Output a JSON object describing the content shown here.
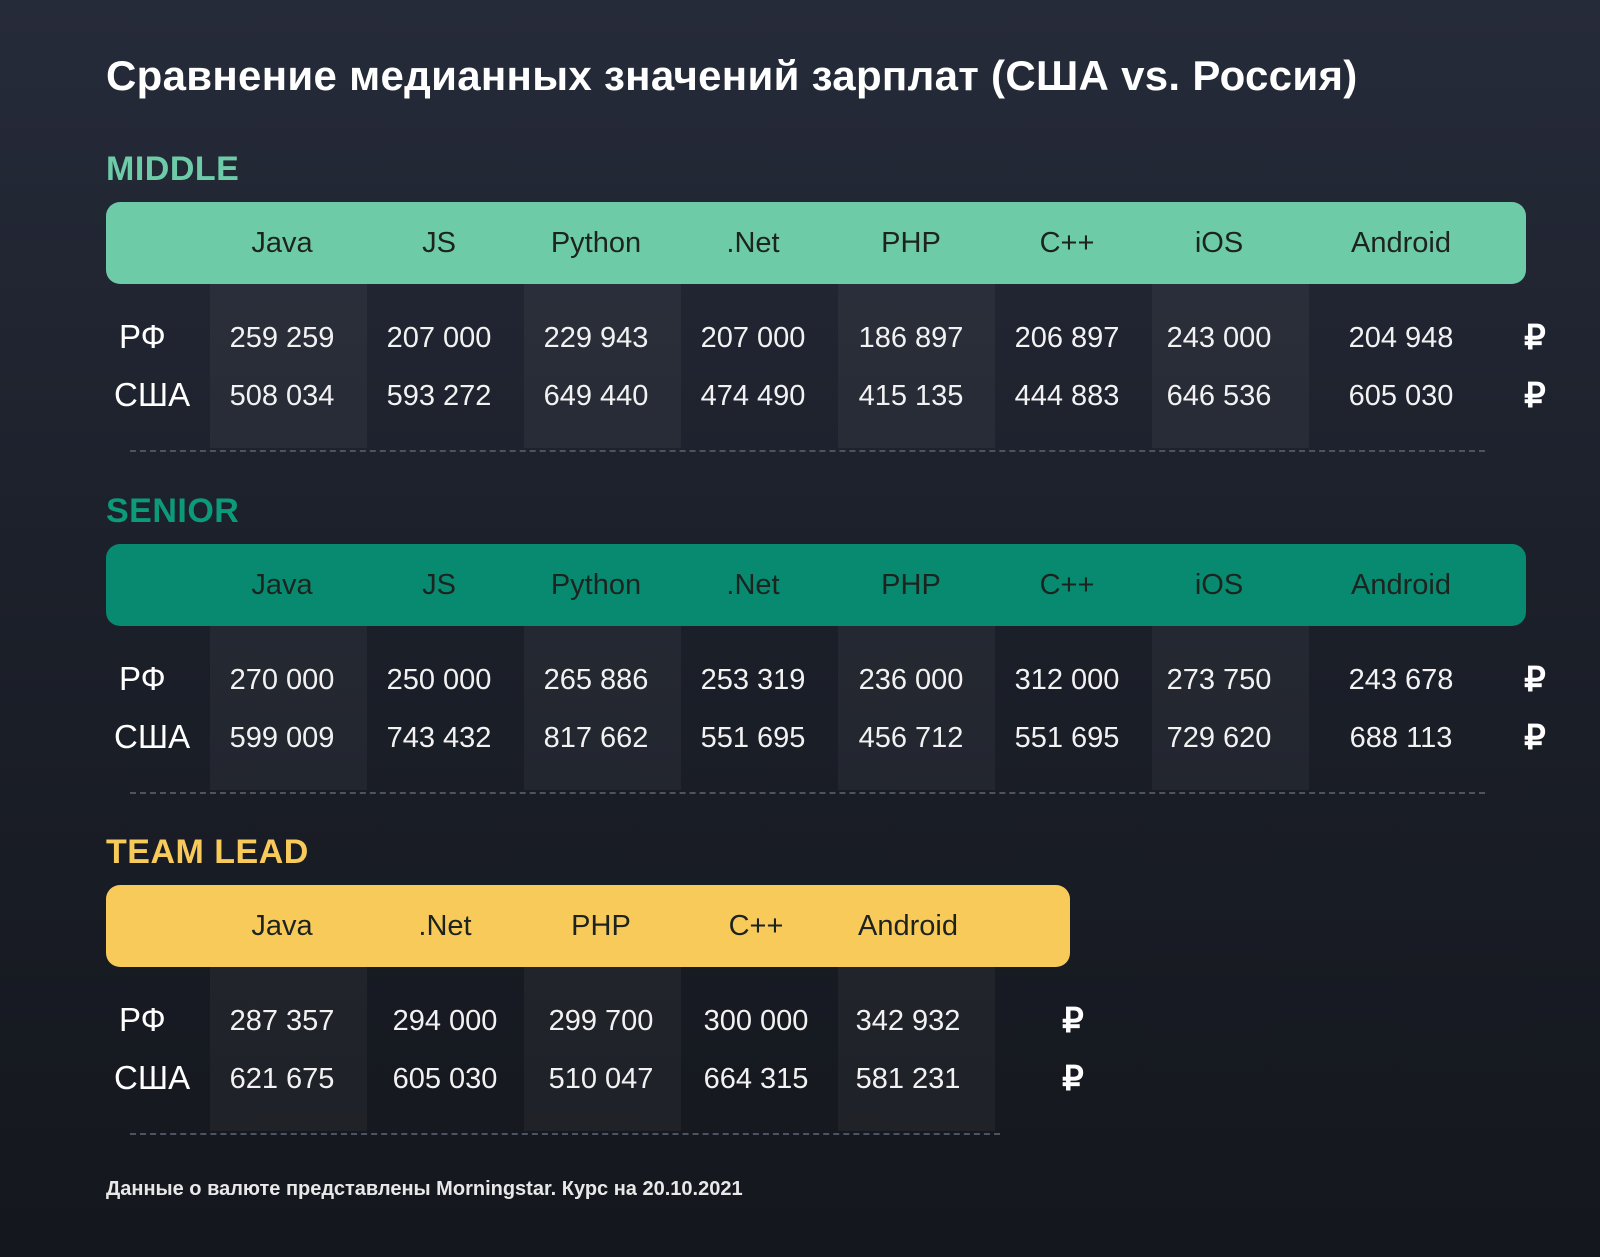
{
  "title": "Сравнение медианных значений зарплат (США vs. Россия)",
  "colors": {
    "middle": "#6dcba8",
    "senior": "#078a6f",
    "team_lead": "#f8ca5a",
    "middle_title": "#6dcba8",
    "senior_title": "#0b9a7a",
    "team_lead_title": "#f8ca5a"
  },
  "chart_data": [
    {
      "type": "table",
      "title": "MIDDLE",
      "columns": [
        "Java",
        "JS",
        "Python",
        ".Net",
        "PHP",
        "C++",
        "iOS",
        "Android"
      ],
      "rows": [
        {
          "label": "РФ",
          "values": [
            "259 259",
            "207 000",
            "229 943",
            "207 000",
            "186 897",
            "206 897",
            "243 000",
            "204 948"
          ],
          "currency": "₽"
        },
        {
          "label": "США",
          "values": [
            "508 034",
            "593 272",
            "649 440",
            "474 490",
            "415 135",
            "444 883",
            "646 536",
            "605 030"
          ],
          "currency": "₽"
        }
      ]
    },
    {
      "type": "table",
      "title": "SENIOR",
      "columns": [
        "Java",
        "JS",
        "Python",
        ".Net",
        "PHP",
        "C++",
        "iOS",
        "Android"
      ],
      "rows": [
        {
          "label": "РФ",
          "values": [
            "270 000",
            "250 000",
            "265 886",
            "253 319",
            "236 000",
            "312 000",
            "273 750",
            "243 678"
          ],
          "currency": "₽"
        },
        {
          "label": "США",
          "values": [
            "599 009",
            "743 432",
            "817 662",
            "551 695",
            "456 712",
            "551 695",
            "729 620",
            "688 113"
          ],
          "currency": "₽"
        }
      ]
    },
    {
      "type": "table",
      "title": "TEAM LEAD",
      "columns": [
        "Java",
        ".Net",
        "PHP",
        "C++",
        "Android"
      ],
      "rows": [
        {
          "label": "РФ",
          "values": [
            "287 357",
            "294 000",
            "299 700",
            "300 000",
            "342 932"
          ],
          "currency": "₽"
        },
        {
          "label": "США",
          "values": [
            "621 675",
            "605 030",
            "510 047",
            "664 315",
            "581 231"
          ],
          "currency": "₽"
        }
      ]
    }
  ],
  "footnote": "Данные о валюте представлены Morningstar. Курс на 20.10.2021"
}
